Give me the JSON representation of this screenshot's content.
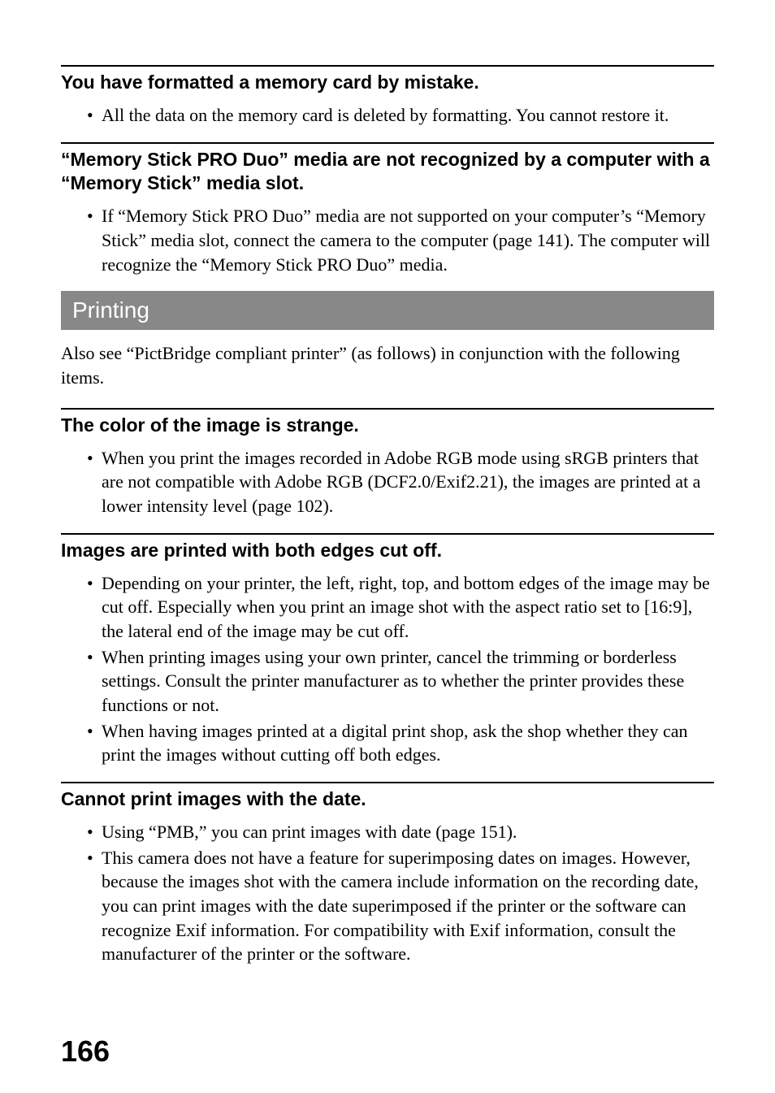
{
  "page_number": "166",
  "colors": {
    "section_bg": "#888888",
    "section_text": "#ffffff",
    "body_text": "#000000",
    "border": "#000000",
    "background": "#ffffff"
  },
  "fonts": {
    "heading_family": "Arial, Helvetica, sans-serif",
    "body_family": "Georgia, 'Times New Roman', serif",
    "heading_size": 23,
    "body_size": 22,
    "section_size": 28,
    "page_num_size": 36
  },
  "topics": [
    {
      "heading": "You have formatted a memory card by mistake.",
      "bullets": [
        "All the data on the memory card is deleted by formatting. You cannot restore it."
      ]
    },
    {
      "heading": "“Memory Stick PRO Duo” media are not recognized by a computer with a “Memory Stick” media slot.",
      "bullets": [
        "If “Memory Stick PRO Duo” media are not supported on your computer’s “Memory Stick” media slot, connect the camera to the computer (page 141). The computer will recognize the “Memory Stick PRO Duo” media."
      ]
    }
  ],
  "section": {
    "title": "Printing",
    "intro": "Also see “PictBridge compliant printer” (as follows) in conjunction with the following items."
  },
  "section_topics": [
    {
      "heading": "The color of the image is strange.",
      "bullets": [
        "When you print the images recorded in Adobe RGB mode using sRGB printers that are not compatible with Adobe RGB (DCF2.0/Exif2.21), the images are printed at a lower intensity level (page 102)."
      ]
    },
    {
      "heading": "Images are printed with both edges cut off.",
      "bullets": [
        "Depending on your printer, the left, right, top, and bottom edges of the image may be cut off. Especially when you print an image shot with the aspect ratio set to [16:9], the lateral end of the image may be cut off.",
        "When printing images using your own printer, cancel the trimming or borderless settings. Consult the printer manufacturer as to whether the printer provides these functions or not.",
        "When having images printed at a digital print shop, ask the shop whether they can print the images without cutting off both edges."
      ]
    },
    {
      "heading": "Cannot print images with the date.",
      "bullets": [
        "Using “PMB,” you can print images with date (page 151).",
        "This camera does not have a feature for superimposing dates on images. However, because the images shot with the camera include information on the recording date, you can print images with the date superimposed if the printer or the software can recognize Exif information. For compatibility with Exif information, consult the manufacturer of the printer or the software."
      ]
    }
  ]
}
